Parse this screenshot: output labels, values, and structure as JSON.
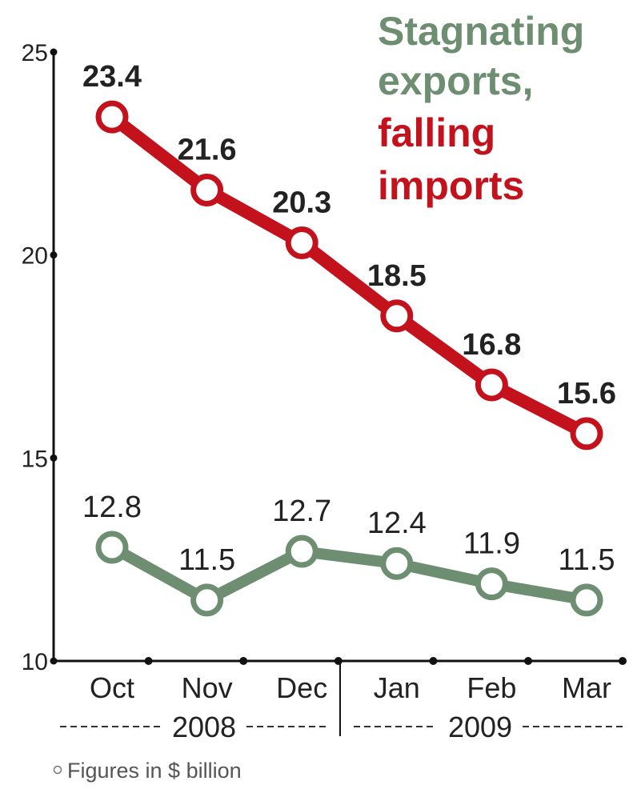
{
  "title_lines": [
    {
      "text": "Stagnating",
      "color": "#6e8e71"
    },
    {
      "text": "exports,",
      "color": "#6e8e71"
    },
    {
      "text": "falling",
      "color": "#c4121d"
    },
    {
      "text": "imports",
      "color": "#c4121d"
    }
  ],
  "note": "Figures in $ billion",
  "years": [
    "2008",
    "2009"
  ],
  "chart_data": {
    "type": "line",
    "categories": [
      "Oct",
      "Nov",
      "Dec",
      "Jan",
      "Feb",
      "Mar"
    ],
    "ylim": [
      10,
      25
    ],
    "yticks": [
      10,
      15,
      20,
      25
    ],
    "grid": false,
    "series": [
      {
        "key": "imports",
        "color": "#c4121d",
        "values": [
          23.4,
          21.6,
          20.3,
          18.5,
          16.8,
          15.6
        ],
        "labels": [
          "23.4",
          "21.6",
          "20.3",
          "18.5",
          "16.8",
          "15.6"
        ]
      },
      {
        "key": "exports",
        "color": "#6e8e71",
        "values": [
          12.8,
          11.5,
          12.7,
          12.4,
          11.9,
          11.5
        ],
        "labels": [
          "12.8",
          "11.5",
          "12.7",
          "12.4",
          "11.9",
          "11.5"
        ]
      }
    ]
  }
}
